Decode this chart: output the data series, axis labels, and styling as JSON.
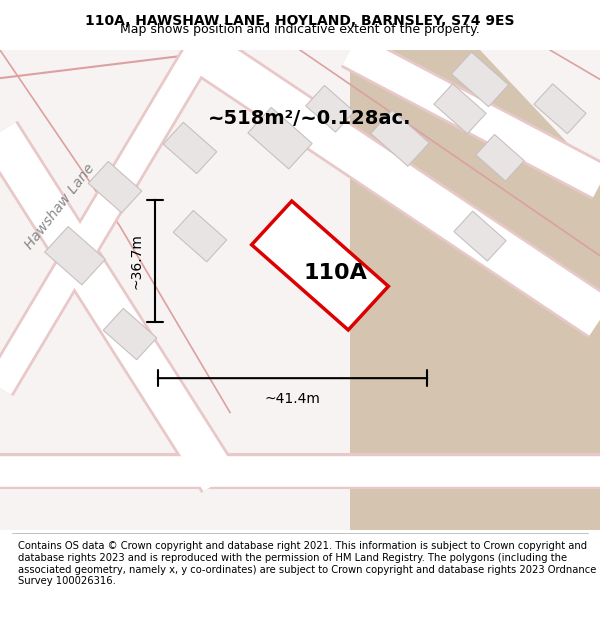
{
  "title_line1": "110A, HAWSHAW LANE, HOYLAND, BARNSLEY, S74 9ES",
  "title_line2": "Map shows position and indicative extent of the property.",
  "footer_text": "Contains OS data © Crown copyright and database right 2021. This information is subject to Crown copyright and database rights 2023 and is reproduced with the permission of HM Land Registry. The polygons (including the associated geometry, namely x, y co-ordinates) are subject to Crown copyright and database rights 2023 Ordnance Survey 100026316.",
  "area_label": "~518m²/~0.128ac.",
  "property_label": "110A",
  "dim_height": "~36.7m",
  "dim_width": "~41.4m",
  "street_label": "Hawshaw Lane",
  "bg_color": "#f5f0f0",
  "map_bg": "#f7f3f3",
  "road_color": "#ffffff",
  "road_border_color": "#e8c8c8",
  "building_fill": "#e8e4e4",
  "building_border": "#c8c0c0",
  "property_fill": "#ffffff",
  "property_border": "#dd0000",
  "tan_fill": "#d4c4b0",
  "title_fontsize": 10,
  "footer_fontsize": 7.5
}
